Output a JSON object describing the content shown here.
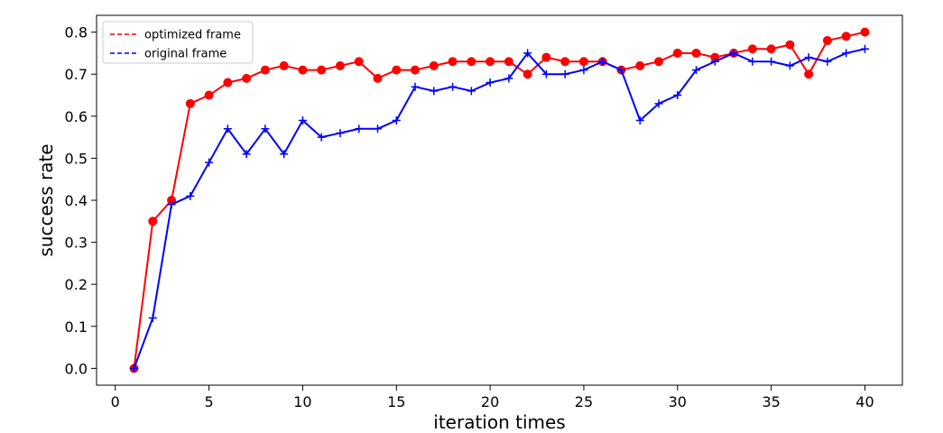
{
  "chart_data": {
    "type": "line",
    "title": "",
    "xlabel": "iteration times",
    "ylabel": "success rate",
    "xlim": [
      -1,
      42
    ],
    "ylim": [
      -0.04,
      0.84
    ],
    "xticks": [
      0,
      5,
      10,
      15,
      20,
      25,
      30,
      35,
      40
    ],
    "yticks": [
      0.0,
      0.1,
      0.2,
      0.3,
      0.4,
      0.5,
      0.6,
      0.7,
      0.8
    ],
    "xtick_labels": [
      "0",
      "5",
      "10",
      "15",
      "20",
      "25",
      "30",
      "35",
      "40"
    ],
    "ytick_labels": [
      "0.0",
      "0.1",
      "0.2",
      "0.3",
      "0.4",
      "0.5",
      "0.6",
      "0.7",
      "0.8"
    ],
    "grid": false,
    "legend_position": "top-left",
    "x": [
      1,
      2,
      3,
      4,
      5,
      6,
      7,
      8,
      9,
      10,
      11,
      12,
      13,
      14,
      15,
      16,
      17,
      18,
      19,
      20,
      21,
      22,
      23,
      24,
      25,
      26,
      27,
      28,
      29,
      30,
      31,
      32,
      33,
      34,
      35,
      36,
      37,
      38,
      39,
      40
    ],
    "series": [
      {
        "name": "optimized frame",
        "color": "#ff0000",
        "marker": "circle",
        "values": [
          0.0,
          0.35,
          0.4,
          0.63,
          0.65,
          0.68,
          0.69,
          0.71,
          0.72,
          0.71,
          0.71,
          0.72,
          0.73,
          0.69,
          0.71,
          0.71,
          0.72,
          0.73,
          0.73,
          0.73,
          0.73,
          0.7,
          0.74,
          0.73,
          0.73,
          0.73,
          0.71,
          0.72,
          0.73,
          0.75,
          0.75,
          0.74,
          0.75,
          0.76,
          0.76,
          0.77,
          0.7,
          0.78,
          0.79,
          0.8
        ]
      },
      {
        "name": "original frame",
        "color": "#0000ff",
        "marker": "plus",
        "values": [
          0.0,
          0.12,
          0.39,
          0.41,
          0.49,
          0.57,
          0.51,
          0.57,
          0.51,
          0.59,
          0.55,
          0.56,
          0.57,
          0.57,
          0.59,
          0.67,
          0.66,
          0.67,
          0.66,
          0.68,
          0.69,
          0.75,
          0.7,
          0.7,
          0.71,
          0.73,
          0.71,
          0.59,
          0.63,
          0.65,
          0.71,
          0.73,
          0.75,
          0.73,
          0.73,
          0.72,
          0.74,
          0.73,
          0.75,
          0.76
        ]
      }
    ]
  }
}
